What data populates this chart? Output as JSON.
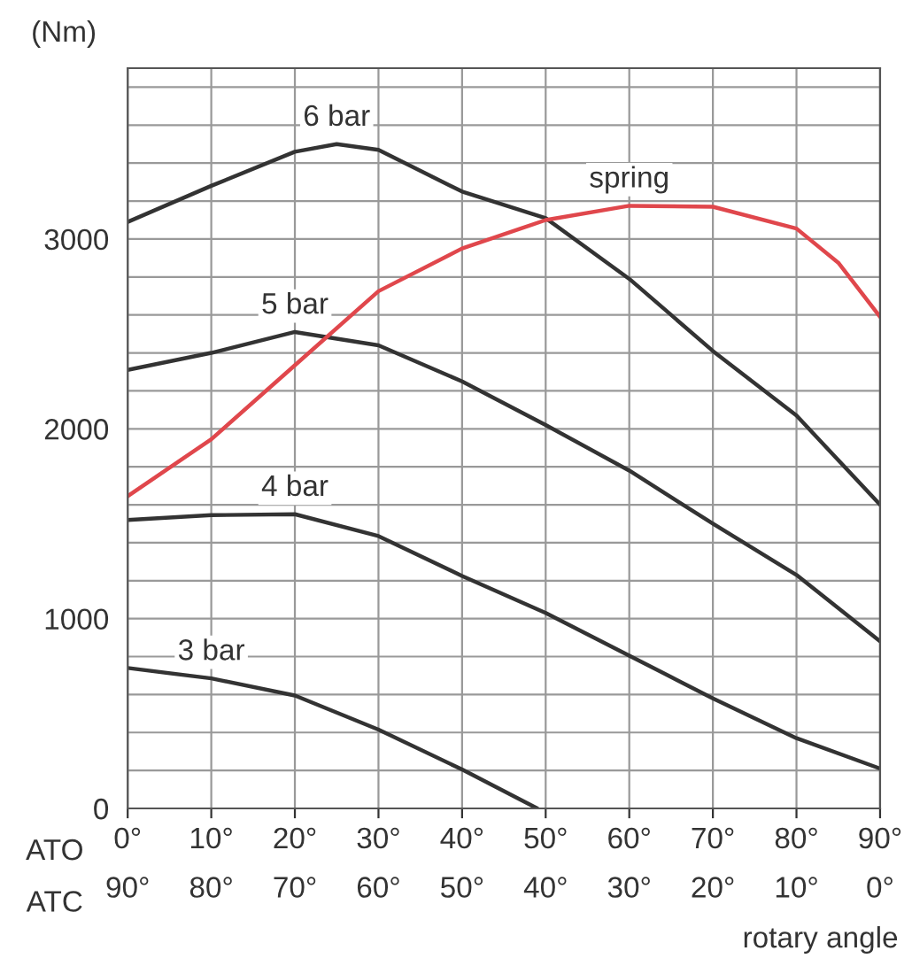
{
  "chart_data": {
    "type": "line",
    "ylabel": "(Nm)",
    "xlabel": "ATO",
    "x2label": "ATC",
    "annotations": [
      "rotary angle"
    ],
    "x": [
      0,
      10,
      20,
      30,
      40,
      50,
      60,
      70,
      80,
      90
    ],
    "series": [
      {
        "name": "6 bar",
        "color": "#333333",
        "x": [
          0,
          10,
          20,
          25,
          30,
          40,
          50,
          60,
          70,
          80,
          90
        ],
        "values": [
          3090,
          3280,
          3460,
          3500,
          3470,
          3250,
          3110,
          2790,
          2410,
          2070,
          1600
        ]
      },
      {
        "name": "5 bar",
        "color": "#333333",
        "values": [
          2310,
          2400,
          2510,
          2440,
          2250,
          2020,
          1780,
          1500,
          1230,
          880
        ]
      },
      {
        "name": "4 bar",
        "color": "#333333",
        "values": [
          1520,
          1545,
          1550,
          1435,
          1225,
          1030,
          805,
          580,
          370,
          210
        ]
      },
      {
        "name": "3 bar",
        "color": "#333333",
        "x": [
          0,
          10,
          20,
          30,
          40,
          49
        ],
        "values": [
          740,
          685,
          595,
          415,
          205,
          0
        ]
      },
      {
        "name": "spring",
        "color": "#e0474c",
        "x": [
          0,
          10,
          20,
          30,
          40,
          50,
          60,
          70,
          80,
          85,
          90
        ],
        "values": [
          1645,
          1945,
          2335,
          2725,
          2950,
          3100,
          3175,
          3170,
          3055,
          2875,
          2590
        ]
      }
    ],
    "xlim": [
      0,
      90
    ],
    "ylim": [
      0,
      3900
    ],
    "xticks": [
      {
        "value": 0,
        "label": "0°"
      },
      {
        "value": 10,
        "label": "10°"
      },
      {
        "value": 20,
        "label": "20°"
      },
      {
        "value": 30,
        "label": "30°"
      },
      {
        "value": 40,
        "label": "40°"
      },
      {
        "value": 50,
        "label": "50°"
      },
      {
        "value": 60,
        "label": "60°"
      },
      {
        "value": 70,
        "label": "70°"
      },
      {
        "value": 80,
        "label": "80°"
      },
      {
        "value": 90,
        "label": "90°"
      }
    ],
    "x2lim": [
      90,
      0
    ],
    "x2ticks": [
      {
        "value": 90,
        "label": "90°"
      },
      {
        "value": 80,
        "label": "80°"
      },
      {
        "value": 70,
        "label": "70°"
      },
      {
        "value": 60,
        "label": "60°"
      },
      {
        "value": 50,
        "label": "50°"
      },
      {
        "value": 40,
        "label": "40°"
      },
      {
        "value": 30,
        "label": "30°"
      },
      {
        "value": 20,
        "label": "20°"
      },
      {
        "value": 10,
        "label": "10°"
      },
      {
        "value": 0,
        "label": "0°"
      }
    ],
    "yticks": [
      0,
      {
        "value": 200,
        "label": null
      },
      {
        "value": 400,
        "label": null
      },
      {
        "value": 600,
        "label": null
      },
      {
        "value": 800,
        "label": null
      },
      1000,
      {
        "value": 1200,
        "label": null
      },
      {
        "value": 1400,
        "label": null
      },
      {
        "value": 1600,
        "label": null
      },
      {
        "value": 1800,
        "label": null
      },
      2000,
      {
        "value": 2200,
        "label": null
      },
      {
        "value": 2400,
        "label": null
      },
      {
        "value": 2600,
        "label": null
      },
      {
        "value": 2800,
        "label": null
      },
      3000,
      {
        "value": 3200,
        "label": null
      },
      {
        "value": 3400,
        "label": null
      },
      {
        "value": 3600,
        "label": null
      },
      {
        "value": 3800,
        "label": null
      }
    ],
    "grid": true,
    "legend": false,
    "marker": "none",
    "line_style": "solid"
  }
}
